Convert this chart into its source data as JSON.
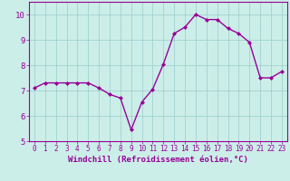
{
  "x": [
    0,
    1,
    2,
    3,
    4,
    5,
    6,
    7,
    8,
    9,
    10,
    11,
    12,
    13,
    14,
    15,
    16,
    17,
    18,
    19,
    20,
    21,
    22,
    23
  ],
  "y": [
    7.1,
    7.3,
    7.3,
    7.3,
    7.3,
    7.3,
    7.1,
    6.85,
    6.7,
    5.45,
    6.55,
    7.05,
    8.05,
    9.25,
    9.5,
    10.0,
    9.8,
    9.8,
    9.45,
    9.25,
    8.9,
    7.5,
    7.5,
    7.75
  ],
  "line_color": "#990099",
  "marker": "D",
  "marker_size": 2,
  "bg_color": "#cceee8",
  "grid_color": "#99cccc",
  "xlabel": "Windchill (Refroidissement éolien,°C)",
  "xlabel_color": "#990099",
  "tick_color": "#990099",
  "ylim": [
    5,
    10.5
  ],
  "xlim": [
    -0.5,
    23.5
  ],
  "yticks": [
    5,
    6,
    7,
    8,
    9,
    10
  ],
  "xticks": [
    0,
    1,
    2,
    3,
    4,
    5,
    6,
    7,
    8,
    9,
    10,
    11,
    12,
    13,
    14,
    15,
    16,
    17,
    18,
    19,
    20,
    21,
    22,
    23
  ],
  "line_width": 1.0,
  "xlabel_fontsize": 6.5,
  "tick_fontsize": 5.5,
  "ytick_fontsize": 6.5
}
